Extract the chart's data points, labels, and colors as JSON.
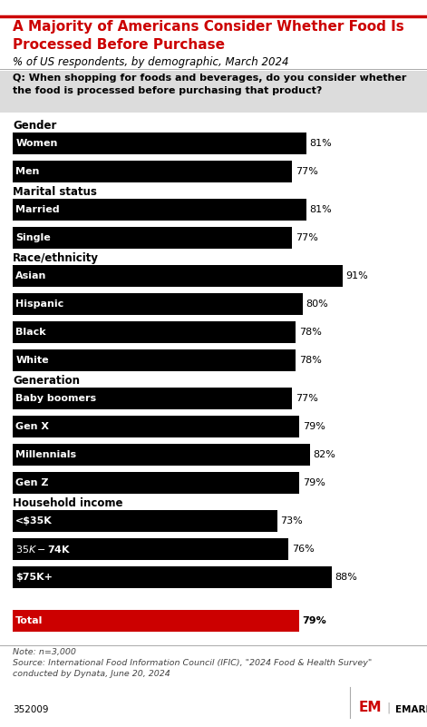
{
  "title_line1": "A Majority of Americans Consider Whether Food Is",
  "title_line2": "Processed Before Purchase",
  "subtitle": "% of US respondents, by demographic, March 2024",
  "question": "Q: When shopping for foods and beverages, do you consider whether\nthe food is processed before purchasing that product?",
  "categories": [
    "Women",
    "Men",
    "Married",
    "Single",
    "Asian",
    "Hispanic",
    "Black",
    "White",
    "Baby boomers",
    "Gen X",
    "Millennials",
    "Gen Z",
    "<$35K",
    "$35K-$74K",
    "$75K+",
    "Total"
  ],
  "groups": [
    {
      "label": "Gender",
      "indices": [
        0,
        1
      ]
    },
    {
      "label": "Marital status",
      "indices": [
        2,
        3
      ]
    },
    {
      "label": "Race/ethnicity",
      "indices": [
        4,
        5,
        6,
        7
      ]
    },
    {
      "label": "Generation",
      "indices": [
        8,
        9,
        10,
        11
      ]
    },
    {
      "label": "Household income",
      "indices": [
        12,
        13,
        14
      ]
    }
  ],
  "total_index": 15,
  "values": [
    81,
    77,
    81,
    77,
    91,
    80,
    78,
    78,
    77,
    79,
    82,
    79,
    73,
    76,
    88,
    79
  ],
  "bar_colors": [
    "#000000",
    "#000000",
    "#000000",
    "#000000",
    "#000000",
    "#000000",
    "#000000",
    "#000000",
    "#000000",
    "#000000",
    "#000000",
    "#000000",
    "#000000",
    "#000000",
    "#000000",
    "#cc0000"
  ],
  "note": "Note: n=3,000\nSource: International Food Information Council (IFIC), \"2024 Food & Health Survey\"\nconducted by Dynata, June 20, 2024",
  "footer_id": "352009",
  "title_color": "#cc0000",
  "bg_color": "#ffffff",
  "question_bg_color": "#dcdcdc"
}
